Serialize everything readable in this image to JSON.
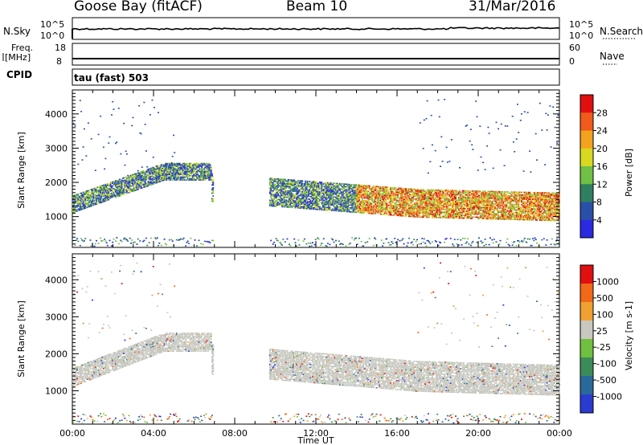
{
  "header": {
    "station": "Goose Bay (fitACF)",
    "beam": "Beam 10",
    "date": "31/Mar/2016"
  },
  "top_panels": {
    "nsky_label": "N.Sky",
    "nsky_ticks": [
      "10^5",
      "10^0"
    ],
    "nsearch_label": "N.Search",
    "nsearch_ticks": [
      "10^5",
      "10^0"
    ],
    "freq_label_1": "Freq.",
    "freq_label_2": "[MHz]",
    "freq_ticks": [
      "18",
      "8"
    ],
    "nave_label": "Nave",
    "nave_ticks": [
      "60",
      "0"
    ],
    "cpid_label": "CPID",
    "cpid_value": "tau (fast) 503"
  },
  "colors": {
    "power_scale": [
      "#2a2ae0",
      "#2a4fa8",
      "#2f8060",
      "#6fc044",
      "#d8d820",
      "#f3a21f",
      "#f05a1a",
      "#e01010"
    ],
    "velocity_scale": [
      "#2a3bd0",
      "#2a6a9a",
      "#3c8c5a",
      "#70c040",
      "#c8c8c0",
      "#f0a030",
      "#f06818",
      "#e01010"
    ],
    "ground_scatter": "#c6c6bf"
  },
  "chart_data": [
    {
      "type": "heatmap",
      "name": "power",
      "ylabel": "Slant Range [km]",
      "ylim": [
        100,
        4700
      ],
      "yticks": [
        1000,
        2000,
        3000,
        4000
      ],
      "xlim": [
        0,
        24
      ],
      "xticks": [
        "00:00",
        "04:00",
        "08:00",
        "12:00",
        "16:00",
        "20:00",
        "00:00"
      ],
      "colorbar_label": "Power [dB]",
      "colorbar_ticks": [
        "28",
        "24",
        "20",
        "16",
        "12",
        "8",
        "4"
      ],
      "bands": [
        {
          "t_start": 0.0,
          "t_end": 6.8,
          "range_start": 1400,
          "range_end": 2350,
          "level": "medium"
        },
        {
          "t_start": 9.8,
          "t_end": 24.0,
          "range_start": 1600,
          "range_end": 1300,
          "level": "high"
        }
      ]
    },
    {
      "type": "heatmap",
      "name": "velocity",
      "ylabel": "Slant Range [km]",
      "ylim": [
        100,
        4700
      ],
      "yticks": [
        1000,
        2000,
        3000,
        4000
      ],
      "xlim": [
        0,
        24
      ],
      "xticks": [
        "00:00",
        "04:00",
        "08:00",
        "12:00",
        "16:00",
        "20:00",
        "00:00"
      ],
      "xlabel": "Time UT",
      "colorbar_label": "Velocity [m s-1]",
      "colorbar_ticks": [
        "1000",
        "500",
        "100",
        "25",
        "-25",
        "-100",
        "-500",
        "-1000"
      ]
    }
  ]
}
